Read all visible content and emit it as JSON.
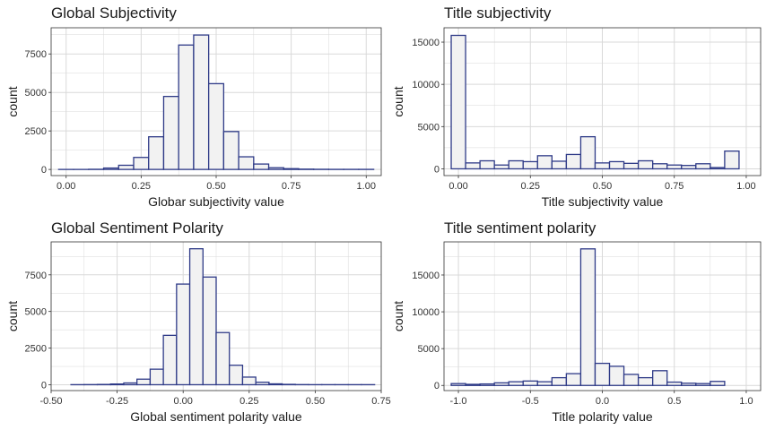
{
  "colors": {
    "bar_fill": "#f2f2f2",
    "bar_stroke": "#2e3a87",
    "grid": "#d9d9d9",
    "panel_border": "#333333",
    "text": "#1a1a1a"
  },
  "chart_data": [
    {
      "type": "bar",
      "subtype": "histogram",
      "title": "Global Subjectivity",
      "xlabel": "Globar subjectivity value",
      "ylabel": "count",
      "bin_start": -0.025,
      "bin_width": 0.05,
      "values": [
        0,
        0,
        10,
        90,
        270,
        780,
        2120,
        4740,
        8080,
        8730,
        5570,
        2460,
        820,
        350,
        110,
        50,
        20,
        10,
        5,
        5,
        5
      ],
      "xlim": [
        -0.05,
        1.05
      ],
      "ylim": [
        -400,
        9200
      ],
      "xticks": [
        0,
        0.25,
        0.5,
        0.75,
        1.0
      ],
      "xtick_labels": [
        "0.00",
        "0.25",
        "0.50",
        "0.75",
        "1.00"
      ],
      "yticks": [
        0,
        2500,
        5000,
        7500
      ],
      "ytick_labels": [
        "0",
        "2500",
        "5000",
        "7500"
      ],
      "grid": true
    },
    {
      "type": "bar",
      "subtype": "histogram",
      "title": "Title subjectivity",
      "xlabel": "Title subjectivity value",
      "ylabel": "count",
      "bin_start": -0.025,
      "bin_width": 0.05,
      "values": [
        15800,
        700,
        950,
        450,
        950,
        850,
        1550,
        900,
        1700,
        3800,
        700,
        850,
        650,
        950,
        600,
        450,
        400,
        600,
        150,
        2100
      ],
      "xlim": [
        -0.05,
        1.05
      ],
      "ylim": [
        -800,
        16700
      ],
      "xticks": [
        0,
        0.25,
        0.5,
        0.75,
        1.0
      ],
      "xtick_labels": [
        "0.00",
        "0.25",
        "0.50",
        "0.75",
        "1.00"
      ],
      "yticks": [
        0,
        5000,
        10000,
        15000
      ],
      "ytick_labels": [
        "0",
        "5000",
        "10000",
        "15000"
      ],
      "grid": true
    },
    {
      "type": "bar",
      "subtype": "histogram",
      "title": "Global Sentiment Polarity",
      "xlabel": "Global sentiment polarity value",
      "ylabel": "count",
      "bin_start": -0.425,
      "bin_width": 0.05,
      "values": [
        5,
        10,
        20,
        50,
        120,
        380,
        1060,
        3370,
        6870,
        9280,
        7350,
        3560,
        1330,
        520,
        170,
        60,
        25,
        10,
        5,
        5,
        5,
        5,
        5
      ],
      "xlim": [
        -0.5,
        0.75
      ],
      "ylim": [
        -400,
        9750
      ],
      "xticks": [
        -0.5,
        -0.25,
        0,
        0.25,
        0.5,
        0.75
      ],
      "xtick_labels": [
        "-0.50",
        "-0.25",
        "0.00",
        "0.25",
        "0.50",
        "0.75"
      ],
      "yticks": [
        0,
        2500,
        5000,
        7500
      ],
      "ytick_labels": [
        "0",
        "2500",
        "5000",
        "7500"
      ],
      "grid": true
    },
    {
      "type": "bar",
      "subtype": "histogram",
      "title": "Title sentiment polarity",
      "xlabel": "Title polarity value",
      "ylabel": "count",
      "bin_start": -1.05,
      "bin_width": 0.1,
      "values": [
        250,
        150,
        200,
        350,
        500,
        600,
        500,
        1050,
        1600,
        18550,
        3000,
        2600,
        1500,
        1050,
        2000,
        450,
        300,
        250,
        550
      ],
      "xlim": [
        -1.1,
        1.1
      ],
      "ylim": [
        -700,
        19500
      ],
      "xticks": [
        -1,
        -0.5,
        0,
        0.5,
        1.0
      ],
      "xtick_labels": [
        "-1.0",
        "-0.5",
        "0.0",
        "0.5",
        "1.0"
      ],
      "yticks": [
        0,
        5000,
        10000,
        15000
      ],
      "ytick_labels": [
        "0",
        "5000",
        "10000",
        "15000"
      ],
      "grid": true
    }
  ]
}
